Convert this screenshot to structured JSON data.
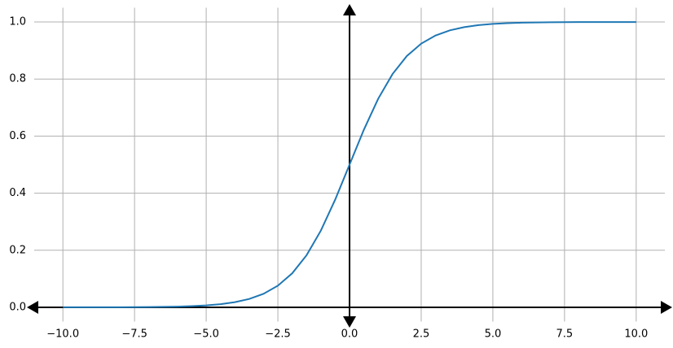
{
  "chart_data": {
    "type": "line",
    "x": [
      -10,
      -9.5,
      -9,
      -8.5,
      -8,
      -7.5,
      -7,
      -6.5,
      -6,
      -5.5,
      -5,
      -4.5,
      -4,
      -3.5,
      -3,
      -2.5,
      -2,
      -1.5,
      -1,
      -0.5,
      0,
      0.5,
      1,
      1.5,
      2,
      2.5,
      3,
      3.5,
      4,
      4.5,
      5,
      5.5,
      6,
      6.5,
      7,
      7.5,
      8,
      8.5,
      9,
      9.5,
      10
    ],
    "series": [
      {
        "color": "#1f77b4",
        "values": [
          5e-05,
          7e-05,
          0.00012,
          0.0002,
          0.00034,
          0.00055,
          0.00091,
          0.0015,
          0.00247,
          0.00407,
          0.00669,
          0.01099,
          0.01799,
          0.02931,
          0.04743,
          0.07586,
          0.1192,
          0.18243,
          0.26894,
          0.37754,
          0.5,
          0.62246,
          0.73106,
          0.81757,
          0.8808,
          0.92414,
          0.95257,
          0.97069,
          0.98201,
          0.98901,
          0.99331,
          0.99593,
          0.99753,
          0.9985,
          0.99909,
          0.99945,
          0.99966,
          0.9998,
          0.99988,
          0.99993,
          0.99995
        ]
      }
    ],
    "xlim": [
      -11,
      11
    ],
    "ylim": [
      -0.05,
      1.05
    ],
    "xticks": [
      {
        "value": -10,
        "label": "−10.0"
      },
      {
        "value": -7.5,
        "label": "−7.5"
      },
      {
        "value": -5,
        "label": "−5.0"
      },
      {
        "value": -2.5,
        "label": "−2.5"
      },
      {
        "value": 0,
        "label": "0.0"
      },
      {
        "value": 2.5,
        "label": "2.5"
      },
      {
        "value": 5,
        "label": "5.0"
      },
      {
        "value": 7.5,
        "label": "7.5"
      },
      {
        "value": 10,
        "label": "10.0"
      }
    ],
    "yticks": [
      {
        "value": 0,
        "label": "0.0"
      },
      {
        "value": 0.2,
        "label": "0.2"
      },
      {
        "value": 0.4,
        "label": "0.4"
      },
      {
        "value": 0.6,
        "label": "0.6"
      },
      {
        "value": 0.8,
        "label": "0.8"
      },
      {
        "value": 1,
        "label": "1.0"
      }
    ],
    "grid": true
  }
}
